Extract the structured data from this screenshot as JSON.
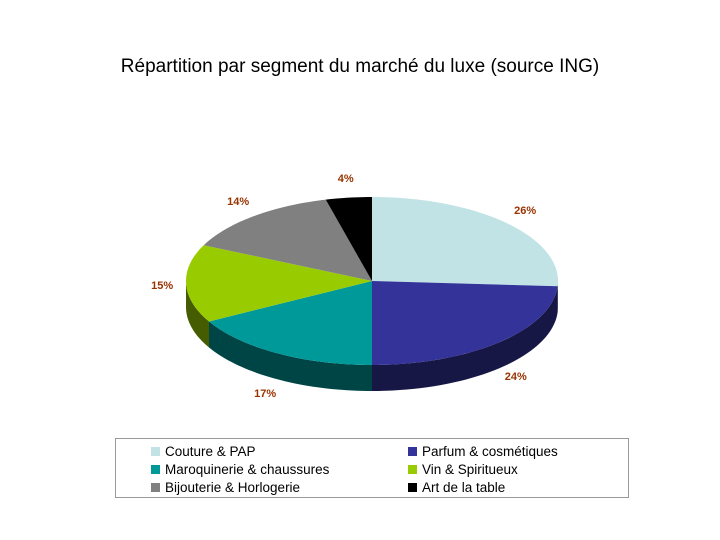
{
  "title": "Répartition par segment du marché du luxe (source ING)",
  "chart_data": {
    "type": "pie",
    "style": "3d",
    "title": "Répartition par segment du marché du luxe (source ING)",
    "legend_position": "bottom",
    "categories": [
      "Couture & PAP",
      "Parfum & cosmétiques",
      "Maroquinerie & chaussures",
      "Vin & Spiritueux",
      "Bijouterie & Horlogerie",
      "Art de la table"
    ],
    "values": [
      26,
      24,
      17,
      15,
      14,
      4
    ],
    "labels": [
      "26%",
      "24%",
      "17%",
      "15%",
      "14%",
      "4%"
    ],
    "colors": [
      "#C1E3E6",
      "#333399",
      "#009999",
      "#99CC00",
      "#808080",
      "#000000"
    ],
    "label_color": "#993300"
  }
}
